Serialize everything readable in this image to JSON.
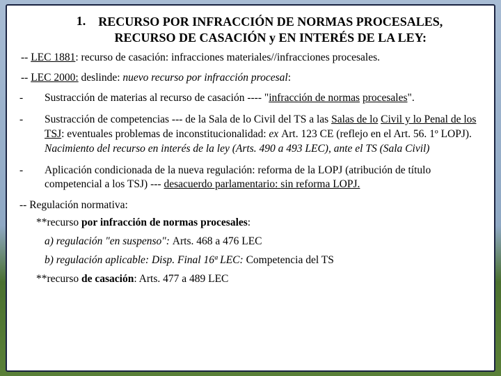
{
  "title": {
    "num": "1.",
    "line1": "RECURSO POR INFRACCIÓN DE NORMAS PROCESALES,",
    "line2": "RECURSO DE CASACIÓN y EN INTERÉS DE LA LEY:"
  },
  "lec1881": {
    "prefix": "-- ",
    "label": "LEC 1881",
    "rest": ": recurso de casación: infracciones materiales//infracciones procesales."
  },
  "lec2000": {
    "prefix": "-- ",
    "label": "LEC 2000:",
    "mid": "  deslinde: ",
    "italic": "nuevo recurso por infracción procesal",
    "after": ":"
  },
  "b1": {
    "dash": "-",
    "t1": "Sustracción de materias al recurso de casación ---- \"",
    "u1": "infracción de normas",
    "t2": " ",
    "u2": "procesales",
    "t3": "\"."
  },
  "b2": {
    "dash": "-",
    "t1": " Sustracción de competencias --- de la Sala de lo Civil del TS a las ",
    "u1": "Salas de lo",
    "t2": " ",
    "u2": "Civil y lo Penal de los TSJ",
    "t3": ": eventuales problemas de inconstitucionalidad: ",
    "i1": "ex ",
    "t4": "Art. 123 CE (reflejo en el Art. 56. 1º LOPJ). ",
    "i2": "Nacimiento del recurso en interés de la ley (Arts. 490 a 493 LEC), ante el TS (Sala Civil)"
  },
  "b3": {
    "dash": "-",
    "t1": "Aplicación condicionada de la nueva regulación: reforma de la LOPJ (atribución de título competencial a los TSJ) --- ",
    "u1": "desacuerdo parlamentario: sin reforma LOPJ."
  },
  "reg": {
    "header": "-- Regulación normativa:",
    "r1_pre": "**recurso ",
    "r1_bold": "por infracción de normas procesales",
    "r1_post": ":",
    "r1a_pre": "a) regulación \"en suspenso\": ",
    "r1a_rest": "Arts. 468 a 476 LEC",
    "r1b_pre": "b) regulación aplicable: Disp. Final 16ª LEC: ",
    "r1b_rest": "Competencia del TS",
    "r2_pre": "**recurso ",
    "r2_bold": "de casación",
    "r2_post": ": Arts. 477 a 489 LEC"
  }
}
